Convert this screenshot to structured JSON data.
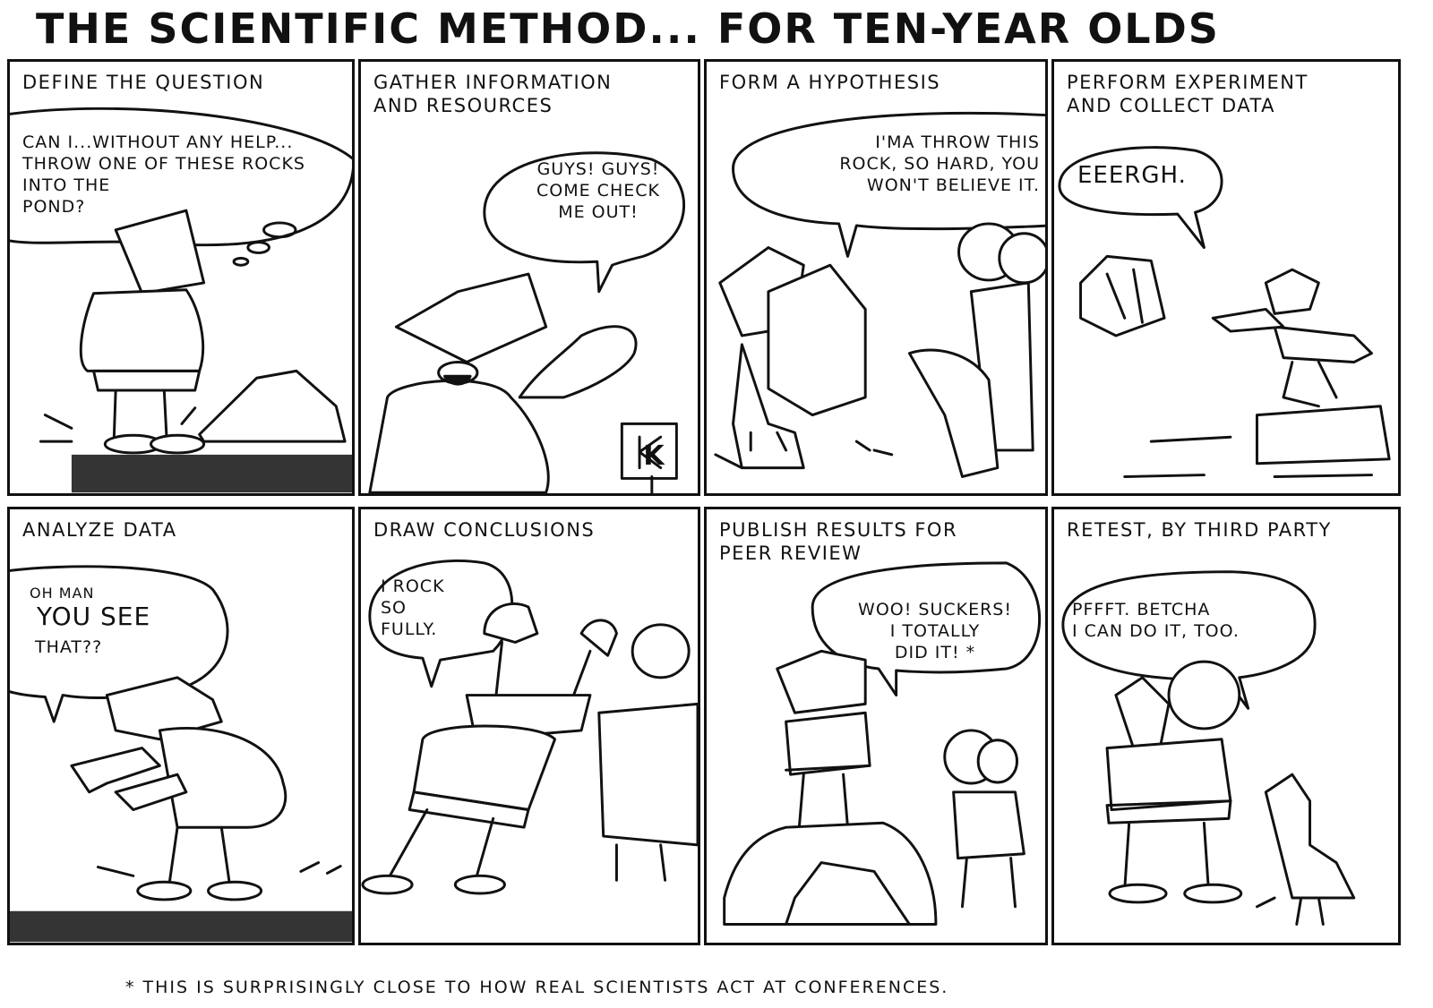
{
  "title": "THE SCIENTIFIC METHOD... FOR TEN-YEAR OLDS",
  "panels": [
    {
      "caption": "DEFINE THE QUESTION",
      "bubble": "CAN I...WITHOUT ANY HELP...\nTHROW ONE OF THESE ROCKS\nINTO THE\nPOND?"
    },
    {
      "caption": "GATHER INFORMATION\nAND RESOURCES",
      "bubble": "GUYS! GUYS!\nCOME CHECK\nME OUT!"
    },
    {
      "caption": "FORM A HYPOTHESIS",
      "bubble": "I'MA THROW THIS\nROCK, SO HARD, YOU\nWON'T BELIEVE IT."
    },
    {
      "caption": "PERFORM EXPERIMENT\nAND COLLECT DATA",
      "bubble": "EEERGH."
    },
    {
      "caption": "ANALYZE DATA",
      "bubble_small": "OH MAN",
      "bubble_big": "YOU SEE",
      "bubble_end": "THAT??"
    },
    {
      "caption": "DRAW CONCLUSIONS",
      "bubble": "I ROCK\nSO\nFULLY."
    },
    {
      "caption": "PUBLISH RESULTS FOR\nPEER REVIEW",
      "bubble": "WOO! SUCKERS!\nI TOTALLY\nDID IT! *"
    },
    {
      "caption": "RETEST, BY THIRD PARTY",
      "bubble": "PFFFT. BETCHA\nI CAN DO IT, TOO."
    }
  ],
  "footnote": "* THIS IS SURPRISINGLY CLOSE TO HOW REAL SCIENTISTS ACT AT CONFERENCES.",
  "signature": "K"
}
